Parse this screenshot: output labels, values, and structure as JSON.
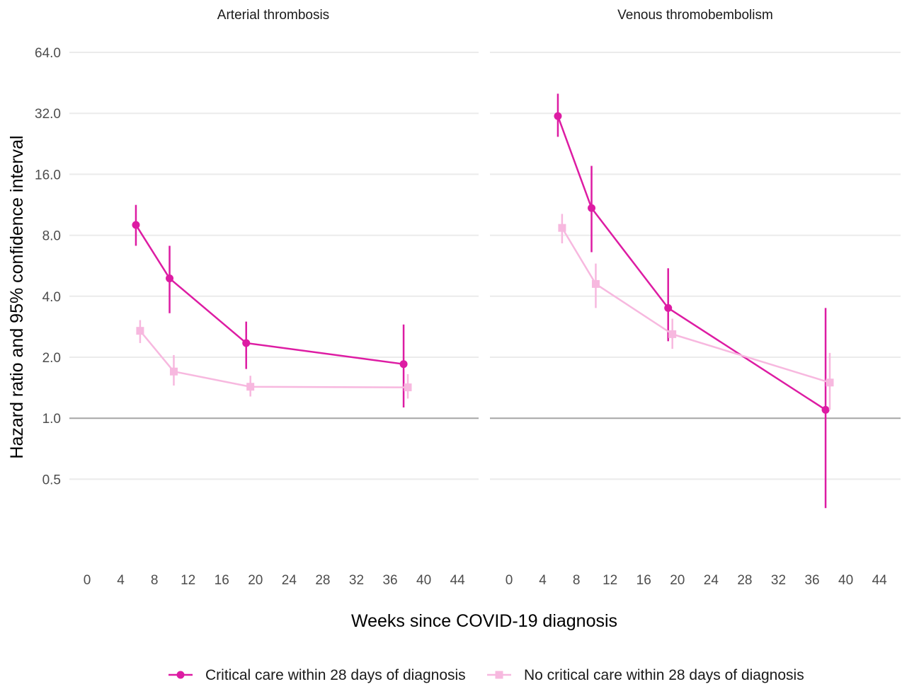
{
  "chart_data": {
    "type": "line",
    "xlabel": "Weeks since COVID-19 diagnosis",
    "ylabel": "Hazard ratio and 95% confidence interval",
    "y_scale": "log2",
    "ylim": [
      0.3,
      64
    ],
    "xlim": [
      0,
      44
    ],
    "x_ticks": [
      "0",
      "4",
      "8",
      "12",
      "16",
      "20",
      "24",
      "28",
      "32",
      "36",
      "40",
      "44"
    ],
    "y_ticks": [
      "64.0",
      "32.0",
      "16.0",
      "8.0",
      "4.0",
      "2.0",
      "1.0",
      "0.5"
    ],
    "reference_line": 1.0,
    "grid": true,
    "legend_position": "bottom",
    "series_styles": [
      {
        "name": "Critical care within 28 days of diagnosis",
        "color": "#dd1ca3",
        "marker": "circle"
      },
      {
        "name": "No critical care within 28 days of diagnosis",
        "color": "#f7b8df",
        "marker": "square"
      }
    ],
    "panels": [
      {
        "title": "Arterial thrombosis",
        "series": [
          {
            "name": "Critical care within 28 days of diagnosis",
            "points": [
              {
                "x": 5.8,
                "y": 9.0,
                "lo": 7.1,
                "hi": 11.3
              },
              {
                "x": 9.8,
                "y": 4.9,
                "lo": 3.3,
                "hi": 7.1
              },
              {
                "x": 18.9,
                "y": 2.35,
                "lo": 1.75,
                "hi": 3.0
              },
              {
                "x": 37.6,
                "y": 1.85,
                "lo": 1.13,
                "hi": 2.9
              }
            ]
          },
          {
            "name": "No critical care within 28 days of diagnosis",
            "points": [
              {
                "x": 6.3,
                "y": 2.7,
                "lo": 2.35,
                "hi": 3.05
              },
              {
                "x": 10.3,
                "y": 1.7,
                "lo": 1.45,
                "hi": 2.05
              },
              {
                "x": 19.4,
                "y": 1.43,
                "lo": 1.28,
                "hi": 1.62
              },
              {
                "x": 38.1,
                "y": 1.42,
                "lo": 1.25,
                "hi": 1.65
              }
            ]
          }
        ]
      },
      {
        "title": "Venous thromobembolism",
        "series": [
          {
            "name": "Critical care within 28 days of diagnosis",
            "points": [
              {
                "x": 5.8,
                "y": 31.0,
                "lo": 24.5,
                "hi": 40.0
              },
              {
                "x": 9.8,
                "y": 10.9,
                "lo": 6.6,
                "hi": 17.6
              },
              {
                "x": 18.9,
                "y": 3.5,
                "lo": 2.4,
                "hi": 5.5
              },
              {
                "x": 37.6,
                "y": 1.1,
                "lo": 0.36,
                "hi": 3.5
              }
            ]
          },
          {
            "name": "No critical care within 28 days of diagnosis",
            "points": [
              {
                "x": 6.3,
                "y": 8.7,
                "lo": 7.3,
                "hi": 10.2
              },
              {
                "x": 10.3,
                "y": 4.6,
                "lo": 3.5,
                "hi": 5.8
              },
              {
                "x": 19.4,
                "y": 2.6,
                "lo": 2.2,
                "hi": 3.1
              },
              {
                "x": 38.1,
                "y": 1.5,
                "lo": 1.1,
                "hi": 2.1
              }
            ]
          }
        ]
      }
    ]
  }
}
